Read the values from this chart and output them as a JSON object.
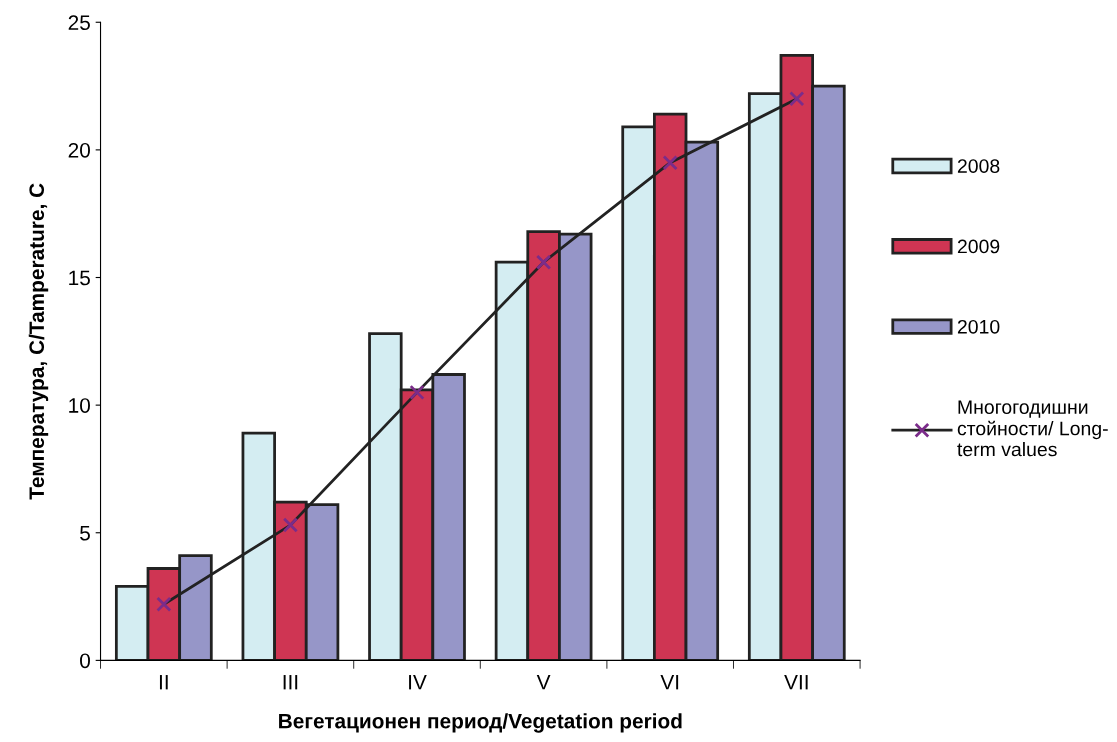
{
  "chart_data": {
    "type": "bar",
    "xlabel": "Вегетационен период/Vegetation period",
    "ylabel": "Температура, С/Tamperature, С",
    "categories": [
      "II",
      "III",
      "IV",
      "V",
      "VI",
      "VII"
    ],
    "series": [
      {
        "name": "2008",
        "color": "#d4edf2",
        "values": [
          2.9,
          8.9,
          12.8,
          15.6,
          20.9,
          22.2
        ]
      },
      {
        "name": "2009",
        "color": "#cf3553",
        "values": [
          3.6,
          6.2,
          10.6,
          16.8,
          21.4,
          23.7
        ]
      },
      {
        "name": "2010",
        "color": "#9696c8",
        "values": [
          4.1,
          6.1,
          11.2,
          16.7,
          20.3,
          22.5
        ]
      },
      {
        "name": "Многогодишни\nстойности/ Long-\nterm values",
        "type": "line",
        "color": "#222222",
        "marker": "cross",
        "values": [
          2.2,
          5.3,
          10.5,
          15.6,
          19.5,
          22.0
        ]
      }
    ],
    "ylim": [
      0,
      25
    ],
    "yticks": [
      0,
      5,
      10,
      15,
      20,
      25
    ],
    "grid": false,
    "legend": "right"
  }
}
